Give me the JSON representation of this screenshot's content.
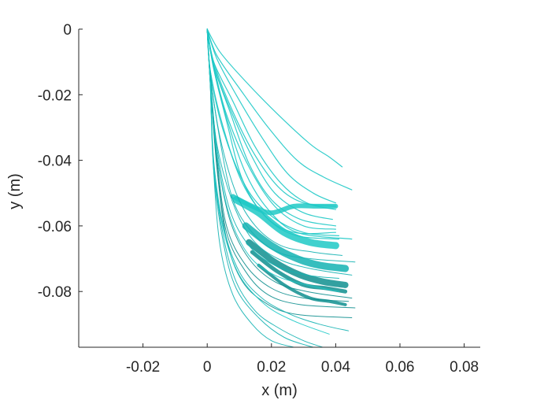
{
  "chart_data": {
    "type": "line",
    "title": "",
    "xlabel": "x (m)",
    "ylabel": "y (m)",
    "xlim": [
      -0.04,
      0.085
    ],
    "ylim": [
      -0.097,
      0.0
    ],
    "xticks": [
      -0.02,
      0,
      0.02,
      0.04,
      0.06,
      0.08
    ],
    "xtick_labels": [
      "-0.02",
      "0",
      "0.02",
      "0.04",
      "0.06",
      "0.08"
    ],
    "yticks": [
      0,
      -0.02,
      -0.04,
      -0.06,
      -0.08
    ],
    "ytick_labels": [
      "0",
      "-0.02",
      "-0.04",
      "-0.06",
      "-0.08"
    ],
    "grid": false,
    "legend": "none",
    "colors": {
      "light": "#1ec9c6",
      "mid": "#14b3b3",
      "dark": "#0f8f8f",
      "axis": "#262626"
    },
    "series": [
      {
        "color": "light",
        "width": 1.2,
        "x": [
          0,
          0.004,
          0.012,
          0.022,
          0.032,
          0.038,
          0.042
        ],
        "y": [
          0,
          -0.007,
          -0.016,
          -0.026,
          -0.035,
          -0.039,
          -0.042
        ]
      },
      {
        "color": "light",
        "width": 1.2,
        "x": [
          0,
          0.003,
          0.01,
          0.019,
          0.028,
          0.036,
          0.045
        ],
        "y": [
          0,
          -0.008,
          -0.018,
          -0.03,
          -0.04,
          -0.045,
          -0.049
        ]
      },
      {
        "color": "light",
        "width": 1.2,
        "x": [
          0,
          0.003,
          0.009,
          0.017,
          0.025,
          0.033,
          0.04
        ],
        "y": [
          0,
          -0.009,
          -0.02,
          -0.033,
          -0.044,
          -0.05,
          -0.053
        ]
      },
      {
        "color": "light",
        "width": 1.2,
        "x": [
          0,
          0.002,
          0.008,
          0.015,
          0.023,
          0.031,
          0.04
        ],
        "y": [
          0,
          -0.01,
          -0.022,
          -0.036,
          -0.047,
          -0.053,
          -0.055
        ]
      },
      {
        "color": "light",
        "width": 1.2,
        "x": [
          0,
          0.002,
          0.007,
          0.014,
          0.021,
          0.03,
          0.039
        ],
        "y": [
          0,
          -0.011,
          -0.024,
          -0.039,
          -0.05,
          -0.056,
          -0.058
        ]
      },
      {
        "color": "light",
        "width": 1.2,
        "x": [
          0,
          0.002,
          0.007,
          0.013,
          0.02,
          0.029,
          0.04
        ],
        "y": [
          0,
          -0.011,
          -0.025,
          -0.041,
          -0.052,
          -0.058,
          -0.06
        ]
      },
      {
        "color": "light",
        "width": 1.2,
        "x": [
          0,
          0.002,
          0.006,
          0.012,
          0.019,
          0.028,
          0.045
        ],
        "y": [
          0,
          -0.012,
          -0.027,
          -0.044,
          -0.055,
          -0.062,
          -0.064
        ]
      },
      {
        "color": "light",
        "width": 1.2,
        "x": [
          0,
          0.002,
          0.006,
          0.011,
          0.018,
          0.027,
          0.04
        ],
        "y": [
          0,
          -0.012,
          -0.028,
          -0.046,
          -0.057,
          -0.062,
          -0.062
        ]
      },
      {
        "color": "light",
        "width": 1.2,
        "x": [
          0,
          0.001,
          0.005,
          0.011,
          0.019,
          0.028,
          0.041
        ],
        "y": [
          0,
          -0.013,
          -0.03,
          -0.047,
          -0.058,
          -0.063,
          -0.064
        ]
      },
      {
        "color": "light",
        "width": 1.2,
        "x": [
          0,
          0.001,
          0.005,
          0.012,
          0.02,
          0.03,
          0.041
        ],
        "y": [
          0,
          -0.013,
          -0.031,
          -0.048,
          -0.057,
          -0.062,
          -0.063
        ]
      },
      {
        "color": "light",
        "width": 1.2,
        "x": [
          0,
          0.002,
          0.007,
          0.014,
          0.022,
          0.03,
          0.04
        ],
        "y": [
          0,
          -0.01,
          -0.023,
          -0.037,
          -0.048,
          -0.053,
          -0.054
        ]
      },
      {
        "color": "light",
        "width": 1.2,
        "x": [
          0,
          0.002,
          0.006,
          0.013,
          0.021,
          0.03,
          0.04
        ],
        "y": [
          0,
          -0.011,
          -0.026,
          -0.042,
          -0.054,
          -0.06,
          -0.061
        ]
      },
      {
        "color": "mid",
        "width": 1.0,
        "x": [
          0,
          0.001,
          0.004,
          0.009,
          0.015,
          0.023,
          0.033,
          0.042
        ],
        "y": [
          0,
          -0.014,
          -0.033,
          -0.05,
          -0.06,
          -0.066,
          -0.068,
          -0.069
        ]
      },
      {
        "color": "mid",
        "width": 1.0,
        "x": [
          0,
          0.001,
          0.004,
          0.008,
          0.014,
          0.022,
          0.032,
          0.046
        ],
        "y": [
          0,
          -0.014,
          -0.034,
          -0.052,
          -0.062,
          -0.068,
          -0.07,
          -0.071
        ]
      },
      {
        "color": "mid",
        "width": 1.0,
        "x": [
          0,
          0.001,
          0.003,
          0.008,
          0.014,
          0.022,
          0.032,
          0.045
        ],
        "y": [
          0,
          -0.015,
          -0.035,
          -0.053,
          -0.064,
          -0.07,
          -0.073,
          -0.075
        ]
      },
      {
        "color": "mid",
        "width": 1.0,
        "x": [
          0,
          0.001,
          0.003,
          0.007,
          0.013,
          0.021,
          0.031,
          0.041
        ],
        "y": [
          0,
          -0.015,
          -0.036,
          -0.055,
          -0.066,
          -0.072,
          -0.075,
          -0.076
        ]
      },
      {
        "color": "dark",
        "width": 1.0,
        "x": [
          0,
          0.001,
          0.003,
          0.007,
          0.013,
          0.021,
          0.031,
          0.045
        ],
        "y": [
          0,
          -0.016,
          -0.038,
          -0.058,
          -0.07,
          -0.077,
          -0.08,
          -0.082
        ]
      },
      {
        "color": "dark",
        "width": 1.0,
        "x": [
          0,
          0.001,
          0.003,
          0.006,
          0.012,
          0.02,
          0.03,
          0.044
        ],
        "y": [
          0,
          -0.016,
          -0.039,
          -0.06,
          -0.072,
          -0.079,
          -0.082,
          -0.083
        ]
      },
      {
        "color": "dark",
        "width": 1.0,
        "x": [
          0,
          0.001,
          0.003,
          0.006,
          0.012,
          0.019,
          0.029,
          0.046
        ],
        "y": [
          0,
          -0.017,
          -0.041,
          -0.062,
          -0.074,
          -0.081,
          -0.084,
          -0.085
        ]
      },
      {
        "color": "dark",
        "width": 1.0,
        "x": [
          0,
          0.001,
          0.003,
          0.006,
          0.011,
          0.019,
          0.028,
          0.045
        ],
        "y": [
          0,
          -0.017,
          -0.042,
          -0.064,
          -0.077,
          -0.084,
          -0.087,
          -0.088
        ]
      },
      {
        "color": "mid",
        "width": 1.0,
        "x": [
          0,
          0.001,
          0.002,
          0.005,
          0.01,
          0.017,
          0.026,
          0.035,
          0.044
        ],
        "y": [
          0,
          -0.017,
          -0.04,
          -0.06,
          -0.074,
          -0.082,
          -0.087,
          -0.09,
          -0.092
        ]
      },
      {
        "color": "mid",
        "width": 1.0,
        "x": [
          0,
          0.001,
          0.002,
          0.005,
          0.009,
          0.015,
          0.022,
          0.03,
          0.036
        ],
        "y": [
          0,
          -0.018,
          -0.042,
          -0.063,
          -0.077,
          -0.086,
          -0.091,
          -0.095,
          -0.097
        ]
      },
      {
        "color": "mid",
        "width": 1.0,
        "x": [
          0,
          0.001,
          0.002,
          0.005,
          0.009,
          0.016,
          0.024,
          0.033
        ],
        "y": [
          0,
          -0.018,
          -0.043,
          -0.065,
          -0.079,
          -0.088,
          -0.094,
          -0.097
        ]
      },
      {
        "color": "mid",
        "width": 1.0,
        "x": [
          0,
          0.001,
          0.002,
          0.004,
          0.008,
          0.014,
          0.02,
          0.027
        ],
        "y": [
          0,
          -0.018,
          -0.043,
          -0.066,
          -0.081,
          -0.09,
          -0.095,
          -0.097
        ]
      },
      {
        "color": "light",
        "width": 1.0,
        "x": [
          0,
          0.001,
          0.002,
          0.005,
          0.01,
          0.018,
          0.027,
          0.038
        ],
        "y": [
          0,
          -0.017,
          -0.041,
          -0.061,
          -0.075,
          -0.084,
          -0.089,
          -0.093
        ]
      },
      {
        "color": "light",
        "width": 1.0,
        "x": [
          0,
          0.001,
          0.003,
          0.007,
          0.013,
          0.021,
          0.031,
          0.041
        ],
        "y": [
          0,
          -0.016,
          -0.038,
          -0.057,
          -0.069,
          -0.075,
          -0.078,
          -0.08
        ]
      }
    ],
    "bands": [
      {
        "color": "light",
        "width": 6,
        "x": [
          0.008,
          0.014,
          0.02,
          0.027,
          0.034,
          0.04
        ],
        "y": [
          -0.051,
          -0.054,
          -0.056,
          -0.054,
          -0.054,
          -0.054
        ]
      },
      {
        "color": "light",
        "width": 9,
        "x": [
          0.009,
          0.016,
          0.024,
          0.032,
          0.04
        ],
        "y": [
          -0.052,
          -0.056,
          -0.062,
          -0.065,
          -0.066
        ]
      },
      {
        "color": "mid",
        "width": 9,
        "x": [
          0.012,
          0.02,
          0.028,
          0.035,
          0.043
        ],
        "y": [
          -0.06,
          -0.066,
          -0.07,
          -0.072,
          -0.073
        ]
      },
      {
        "color": "dark",
        "width": 8,
        "x": [
          0.013,
          0.021,
          0.029,
          0.036,
          0.043
        ],
        "y": [
          -0.065,
          -0.071,
          -0.075,
          -0.077,
          -0.078
        ]
      },
      {
        "color": "dark",
        "width": 5,
        "x": [
          0.014,
          0.022,
          0.03,
          0.037,
          0.043
        ],
        "y": [
          -0.068,
          -0.074,
          -0.078,
          -0.079,
          -0.08
        ]
      },
      {
        "color": "dark",
        "width": 4,
        "x": [
          0.016,
          0.024,
          0.032,
          0.038,
          0.043
        ],
        "y": [
          -0.072,
          -0.078,
          -0.082,
          -0.083,
          -0.084
        ]
      }
    ]
  }
}
